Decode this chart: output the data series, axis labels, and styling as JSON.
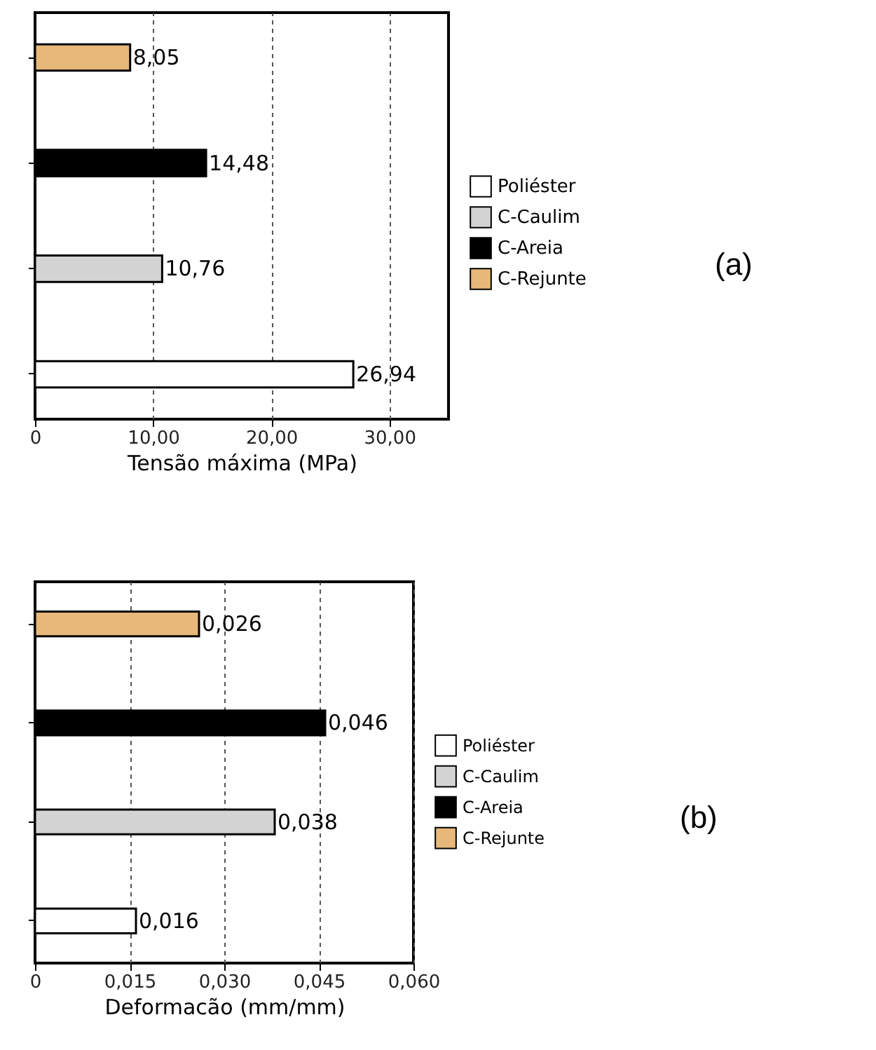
{
  "chart_data": [
    {
      "type": "bar",
      "orientation": "horizontal",
      "xlabel": "Tensão máxima (MPa)",
      "categories": [
        null,
        null,
        null,
        null
      ],
      "series": [
        {
          "name": "Poliéster",
          "color": "#ffffff",
          "values": [
            null,
            null,
            null,
            26.94
          ],
          "value_labels": [
            null,
            null,
            null,
            "26,94"
          ]
        },
        {
          "name": "C-Caulim",
          "color": "#d3d3d3",
          "values": [
            null,
            null,
            10.76,
            null
          ],
          "value_labels": [
            null,
            null,
            "10,76",
            null
          ]
        },
        {
          "name": "C-Areia",
          "color": "#000000",
          "values": [
            null,
            14.48,
            null,
            null
          ],
          "value_labels": [
            null,
            "14,48",
            null,
            null
          ]
        },
        {
          "name": "C-Rejunte",
          "color": "#e6b87a",
          "values": [
            8.05,
            null,
            null,
            null
          ],
          "value_labels": [
            "8,05",
            null,
            null,
            null
          ]
        }
      ],
      "xlim": [
        0,
        35
      ],
      "xticks": [
        0,
        {
          "value": 10,
          "label": "10,00"
        },
        {
          "value": 20,
          "label": "20,00"
        },
        {
          "value": 30,
          "label": "30,00"
        }
      ],
      "grid": "x",
      "legend": "right",
      "tick_labels": "x",
      "annotations": [
        "(a)"
      ]
    },
    {
      "type": "bar",
      "orientation": "horizontal",
      "xlabel": "Deformacão (mm/mm)",
      "categories": [
        null,
        null,
        null,
        null
      ],
      "series": [
        {
          "name": "Poliéster",
          "color": "#ffffff",
          "values": [
            null,
            null,
            null,
            0.016
          ],
          "value_labels": [
            null,
            null,
            null,
            "0,016"
          ]
        },
        {
          "name": "C-Caulim",
          "color": "#d3d3d3",
          "values": [
            null,
            null,
            0.038,
            null
          ],
          "value_labels": [
            null,
            null,
            "0,038",
            null
          ]
        },
        {
          "name": "C-Areia",
          "color": "#000000",
          "values": [
            null,
            0.046,
            null,
            null
          ],
          "value_labels": [
            null,
            "0,046",
            null,
            null
          ]
        },
        {
          "name": "C-Rejunte",
          "color": "#e6b87a",
          "values": [
            0.026,
            null,
            null,
            null
          ],
          "value_labels": [
            "0,026",
            null,
            null,
            null
          ]
        }
      ],
      "xlim": [
        0,
        0.06
      ],
      "xticks": [
        0,
        {
          "value": 0.015,
          "label": "0,015"
        },
        {
          "value": 0.03,
          "label": "0,030"
        },
        {
          "value": 0.045,
          "label": "0,045"
        },
        {
          "value": 0.06,
          "label": "0,060"
        }
      ],
      "grid": "x",
      "legend": "right",
      "tick_labels": "x",
      "annotations": [
        "(b)"
      ]
    }
  ]
}
